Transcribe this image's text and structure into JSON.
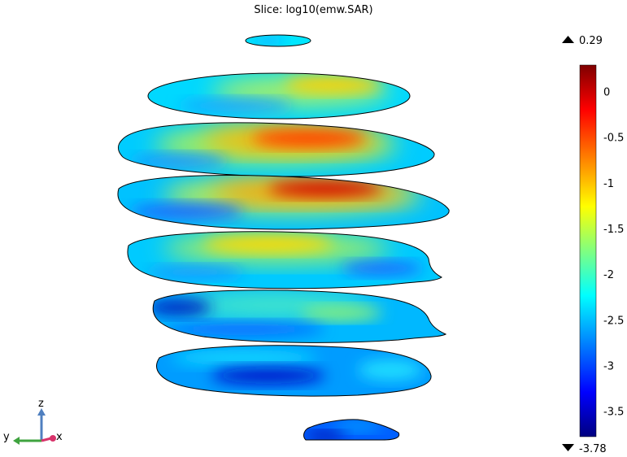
{
  "chart_data": {
    "type": "heatmap",
    "title": "Slice: log10(emw.SAR)",
    "colorbar": {
      "max_label": "0.29",
      "min_label": "-3.78",
      "max": 0.29,
      "min": -3.78,
      "ticks": [
        0,
        -0.5,
        -1,
        -1.5,
        -2,
        -2.5,
        -3,
        -3.5
      ],
      "tick_labels": [
        "0",
        "-0.5",
        "-1",
        "-1.5",
        "-2",
        "-2.5",
        "-3",
        "-3.5"
      ],
      "colormap": [
        "#00007f",
        "#0000ff",
        "#0080ff",
        "#00ffff",
        "#80ff80",
        "#ffff00",
        "#ff8000",
        "#ff0000",
        "#7f0000"
      ]
    },
    "slices_count": 8
  },
  "axis_triad": {
    "labels": [
      "z",
      "y",
      "x"
    ],
    "colors": {
      "z": "#4f7fbf",
      "y": "#3fa33f",
      "x": "#d8336b"
    }
  }
}
